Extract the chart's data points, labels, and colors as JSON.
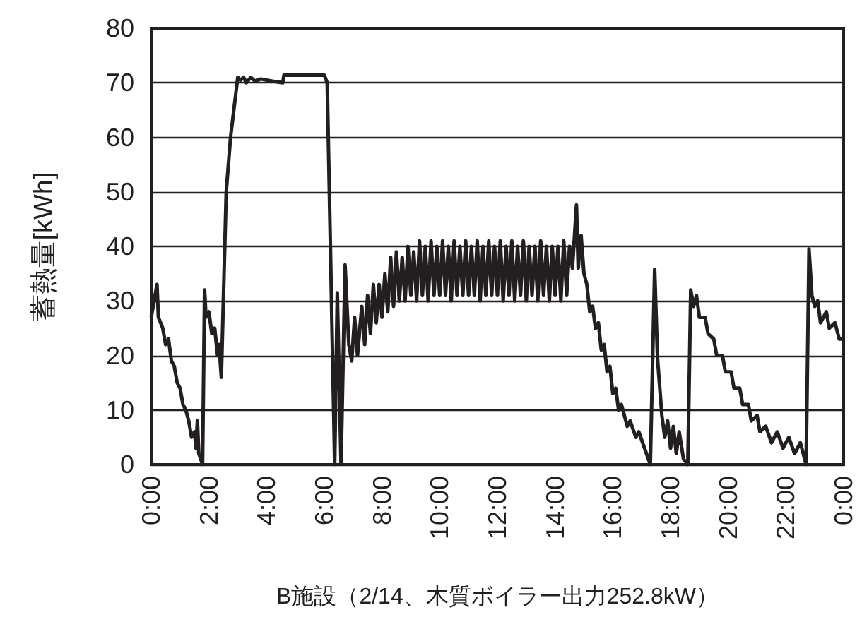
{
  "chart_data": {
    "type": "line",
    "xlabel": "B施設（2/14、木質ボイラー出力252.8kW）",
    "ylabel": "蓄熱量[kWh]",
    "xlim": [
      0,
      24
    ],
    "xticks": [
      {
        "value": 0,
        "label": "0:00"
      },
      {
        "value": 2,
        "label": "2:00"
      },
      {
        "value": 4,
        "label": "4:00"
      },
      {
        "value": 6,
        "label": "6:00"
      },
      {
        "value": 8,
        "label": "8:00"
      },
      {
        "value": 10,
        "label": "10:00"
      },
      {
        "value": 12,
        "label": "12:00"
      },
      {
        "value": 14,
        "label": "14:00"
      },
      {
        "value": 16,
        "label": "16:00"
      },
      {
        "value": 18,
        "label": "18:00"
      },
      {
        "value": 20,
        "label": "20:00"
      },
      {
        "value": 22,
        "label": "22:00"
      },
      {
        "value": 24,
        "label": "0:00"
      }
    ],
    "ylim": [
      0,
      80
    ],
    "yticks": [
      0,
      10,
      20,
      30,
      40,
      50,
      60,
      70,
      80
    ],
    "grid": "y",
    "marker": "none",
    "line_style": "solid",
    "series": [
      {
        "color": "#231f20",
        "x": [
          0,
          0.1,
          0.2,
          0.25,
          0.4,
          0.5,
          0.6,
          0.7,
          0.8,
          0.9,
          1.0,
          1.1,
          1.2,
          1.3,
          1.4,
          1.5,
          1.55,
          1.6,
          1.65,
          1.78,
          1.85,
          1.9,
          2.0,
          2.1,
          2.2,
          2.3,
          2.35,
          2.43,
          2.6,
          2.75,
          3.0,
          3.1,
          3.2,
          3.3,
          3.45,
          3.6,
          3.8,
          4.2,
          4.56,
          4.6,
          6.0,
          6.1,
          6.36,
          6.45,
          6.58,
          6.72,
          6.85,
          6.95,
          7.05,
          7.15,
          7.3,
          7.4,
          7.5,
          7.6,
          7.7,
          7.8,
          7.9,
          8.0,
          8.1,
          8.2,
          8.3,
          8.4,
          8.5,
          8.6,
          8.7,
          8.8,
          8.9,
          9.0,
          9.1,
          9.2,
          9.3,
          9.4,
          9.5,
          9.6,
          9.7,
          9.8,
          9.9,
          10.0,
          10.1,
          10.2,
          10.3,
          10.4,
          10.5,
          10.6,
          10.7,
          10.8,
          10.9,
          11.0,
          11.1,
          11.2,
          11.3,
          11.4,
          11.5,
          11.6,
          11.7,
          11.8,
          11.9,
          12.0,
          12.1,
          12.2,
          12.3,
          12.4,
          12.5,
          12.6,
          12.7,
          12.8,
          12.9,
          13.0,
          13.1,
          13.2,
          13.3,
          13.4,
          13.5,
          13.6,
          13.7,
          13.8,
          13.9,
          14.0,
          14.1,
          14.2,
          14.3,
          14.4,
          14.5,
          14.6,
          14.74,
          14.8,
          14.9,
          15.0,
          15.1,
          15.2,
          15.3,
          15.4,
          15.5,
          15.6,
          15.7,
          15.8,
          15.9,
          16.0,
          16.1,
          16.2,
          16.3,
          16.5,
          16.6,
          16.8,
          16.9,
          17.1,
          17.3,
          17.45,
          17.55,
          17.7,
          17.8,
          17.9,
          18.0,
          18.1,
          18.2,
          18.3,
          18.45,
          18.6,
          18.7,
          18.8,
          18.9,
          19.0,
          19.2,
          19.3,
          19.5,
          19.6,
          19.8,
          19.9,
          20.1,
          20.2,
          20.4,
          20.5,
          20.7,
          20.8,
          21.0,
          21.1,
          21.3,
          21.5,
          21.7,
          21.9,
          22.1,
          22.3,
          22.5,
          22.7,
          22.8,
          22.9,
          23.0,
          23.1,
          23.2,
          23.4,
          23.5,
          23.7,
          23.85,
          24
        ],
        "values": [
          27,
          30,
          33,
          27,
          25,
          22,
          23,
          19,
          18,
          15,
          14,
          11,
          10,
          8,
          5,
          6,
          3,
          8,
          2,
          0,
          32,
          27,
          28,
          24,
          25,
          20,
          22,
          16,
          50,
          60,
          71,
          70.5,
          71,
          70,
          71,
          70.3,
          70.7,
          70.3,
          70,
          71.4,
          71.4,
          70,
          0,
          31.5,
          0,
          36.6,
          22,
          19,
          27,
          20,
          29,
          22,
          31,
          24,
          33,
          26,
          33,
          27,
          35,
          28,
          38,
          29,
          39,
          30,
          38,
          30,
          40,
          31,
          39,
          30,
          41,
          31,
          40,
          30,
          41,
          31,
          40,
          31,
          41,
          31,
          40,
          30,
          41,
          31,
          40,
          31,
          41,
          31,
          40,
          31,
          41,
          30,
          40,
          31,
          41,
          31,
          40,
          31,
          41,
          30,
          40,
          31,
          41,
          30,
          40,
          31,
          41,
          30,
          40,
          31,
          40,
          30,
          41,
          31,
          40,
          30,
          40,
          31,
          40,
          30,
          41,
          31,
          40,
          36,
          47.6,
          36,
          42,
          35,
          33,
          28,
          29,
          25,
          26,
          21,
          22,
          17,
          18,
          13,
          14,
          10,
          11,
          7,
          8,
          5,
          6,
          3,
          0,
          35.8,
          19.4,
          9,
          5,
          8,
          3,
          7,
          2,
          6,
          1,
          0,
          32,
          29,
          31,
          27,
          27,
          24,
          23,
          20,
          20,
          17,
          17,
          14,
          14,
          11,
          11,
          8,
          9,
          6,
          7,
          4,
          6,
          3,
          5,
          2,
          4,
          0,
          39.5,
          31,
          29,
          30,
          26,
          28,
          25,
          26,
          23,
          23
        ]
      }
    ]
  }
}
